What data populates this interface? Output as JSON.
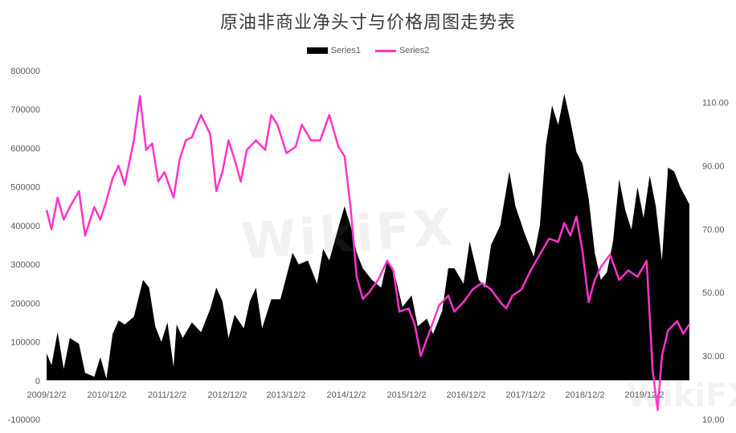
{
  "chart_data": {
    "type": "area+line",
    "title": "原油非商业净头寸与价格周图走势表",
    "legend_position": "top-center",
    "grid": false,
    "x_labels": [
      "2009/12/2",
      "2010/12/2",
      "2011/12/2",
      "2012/12/2",
      "2013/12/2",
      "2014/12/2",
      "2015/12/2",
      "2016/12/2",
      "2017/12/2",
      "2018/12/2",
      "2019/12/2"
    ],
    "y_left": {
      "min": -100000,
      "max": 800000,
      "ticks": [
        "-100000",
        "0",
        "100000",
        "200000",
        "300000",
        "400000",
        "500000",
        "600000",
        "700000",
        "800000"
      ]
    },
    "y_right": {
      "min": 10,
      "max": 120,
      "ticks": [
        "10.00",
        "30.00",
        "50.00",
        "70.00",
        "90.00",
        "110.00"
      ]
    },
    "series": [
      {
        "name": "Series1",
        "type": "area",
        "axis": "left",
        "color": "#000000",
        "points": [
          [
            2009.92,
            70000
          ],
          [
            2010.0,
            40000
          ],
          [
            2010.1,
            125000
          ],
          [
            2010.2,
            30000
          ],
          [
            2010.3,
            110000
          ],
          [
            2010.45,
            95000
          ],
          [
            2010.55,
            20000
          ],
          [
            2010.7,
            10000
          ],
          [
            2010.8,
            60000
          ],
          [
            2010.9,
            5000
          ],
          [
            2011.0,
            120000
          ],
          [
            2011.1,
            155000
          ],
          [
            2011.2,
            145000
          ],
          [
            2011.35,
            165000
          ],
          [
            2011.5,
            260000
          ],
          [
            2011.6,
            240000
          ],
          [
            2011.7,
            140000
          ],
          [
            2011.8,
            100000
          ],
          [
            2011.9,
            150000
          ],
          [
            2012.0,
            35000
          ],
          [
            2012.05,
            145000
          ],
          [
            2012.15,
            110000
          ],
          [
            2012.3,
            150000
          ],
          [
            2012.45,
            125000
          ],
          [
            2012.6,
            185000
          ],
          [
            2012.7,
            240000
          ],
          [
            2012.8,
            205000
          ],
          [
            2012.9,
            110000
          ],
          [
            2013.0,
            170000
          ],
          [
            2013.15,
            135000
          ],
          [
            2013.25,
            205000
          ],
          [
            2013.35,
            240000
          ],
          [
            2013.45,
            135000
          ],
          [
            2013.6,
            210000
          ],
          [
            2013.75,
            210000
          ],
          [
            2013.95,
            330000
          ],
          [
            2014.05,
            300000
          ],
          [
            2014.2,
            310000
          ],
          [
            2014.35,
            250000
          ],
          [
            2014.45,
            340000
          ],
          [
            2014.55,
            310000
          ],
          [
            2014.7,
            395000
          ],
          [
            2014.8,
            450000
          ],
          [
            2014.9,
            400000
          ],
          [
            2015.0,
            330000
          ],
          [
            2015.1,
            290000
          ],
          [
            2015.25,
            260000
          ],
          [
            2015.4,
            240000
          ],
          [
            2015.5,
            310000
          ],
          [
            2015.6,
            290000
          ],
          [
            2015.75,
            190000
          ],
          [
            2015.9,
            220000
          ],
          [
            2016.0,
            140000
          ],
          [
            2016.15,
            160000
          ],
          [
            2016.25,
            120000
          ],
          [
            2016.4,
            180000
          ],
          [
            2016.5,
            290000
          ],
          [
            2016.6,
            290000
          ],
          [
            2016.75,
            250000
          ],
          [
            2016.85,
            360000
          ],
          [
            2017.0,
            260000
          ],
          [
            2017.1,
            240000
          ],
          [
            2017.2,
            350000
          ],
          [
            2017.35,
            400000
          ],
          [
            2017.5,
            540000
          ],
          [
            2017.6,
            450000
          ],
          [
            2017.75,
            380000
          ],
          [
            2017.9,
            320000
          ],
          [
            2018.0,
            400000
          ],
          [
            2018.1,
            610000
          ],
          [
            2018.2,
            710000
          ],
          [
            2018.3,
            660000
          ],
          [
            2018.4,
            740000
          ],
          [
            2018.5,
            670000
          ],
          [
            2018.6,
            590000
          ],
          [
            2018.7,
            560000
          ],
          [
            2018.8,
            470000
          ],
          [
            2018.9,
            330000
          ],
          [
            2019.0,
            260000
          ],
          [
            2019.1,
            280000
          ],
          [
            2019.2,
            360000
          ],
          [
            2019.3,
            520000
          ],
          [
            2019.4,
            440000
          ],
          [
            2019.5,
            390000
          ],
          [
            2019.6,
            500000
          ],
          [
            2019.7,
            420000
          ],
          [
            2019.8,
            530000
          ],
          [
            2019.9,
            450000
          ],
          [
            2020.0,
            310000
          ],
          [
            2020.1,
            550000
          ],
          [
            2020.2,
            540000
          ],
          [
            2020.3,
            500000
          ],
          [
            2020.45,
            455000
          ]
        ]
      },
      {
        "name": "Series2",
        "type": "line",
        "axis": "right",
        "color": "#ff33cc",
        "points": [
          [
            2009.92,
            76
          ],
          [
            2010.0,
            70
          ],
          [
            2010.1,
            80
          ],
          [
            2010.2,
            73
          ],
          [
            2010.3,
            77
          ],
          [
            2010.45,
            82
          ],
          [
            2010.55,
            68
          ],
          [
            2010.7,
            77
          ],
          [
            2010.8,
            73
          ],
          [
            2010.9,
            79
          ],
          [
            2011.0,
            86
          ],
          [
            2011.1,
            90
          ],
          [
            2011.2,
            84
          ],
          [
            2011.35,
            98
          ],
          [
            2011.45,
            112
          ],
          [
            2011.55,
            95
          ],
          [
            2011.65,
            97
          ],
          [
            2011.75,
            85
          ],
          [
            2011.85,
            88
          ],
          [
            2012.0,
            80
          ],
          [
            2012.1,
            92
          ],
          [
            2012.2,
            98
          ],
          [
            2012.3,
            99
          ],
          [
            2012.45,
            106
          ],
          [
            2012.6,
            100
          ],
          [
            2012.7,
            82
          ],
          [
            2012.8,
            88
          ],
          [
            2012.9,
            98
          ],
          [
            2013.0,
            92
          ],
          [
            2013.1,
            85
          ],
          [
            2013.2,
            95
          ],
          [
            2013.35,
            98
          ],
          [
            2013.5,
            95
          ],
          [
            2013.6,
            106
          ],
          [
            2013.7,
            103
          ],
          [
            2013.85,
            94
          ],
          [
            2014.0,
            96
          ],
          [
            2014.1,
            103
          ],
          [
            2014.25,
            98
          ],
          [
            2014.4,
            98
          ],
          [
            2014.55,
            106
          ],
          [
            2014.7,
            96
          ],
          [
            2014.8,
            93
          ],
          [
            2014.9,
            77
          ],
          [
            2015.0,
            55
          ],
          [
            2015.1,
            48
          ],
          [
            2015.2,
            50
          ],
          [
            2015.35,
            54
          ],
          [
            2015.5,
            60
          ],
          [
            2015.6,
            57
          ],
          [
            2015.7,
            44
          ],
          [
            2015.85,
            45
          ],
          [
            2015.95,
            40
          ],
          [
            2016.05,
            30
          ],
          [
            2016.2,
            38
          ],
          [
            2016.35,
            46
          ],
          [
            2016.5,
            49
          ],
          [
            2016.6,
            44
          ],
          [
            2016.75,
            47
          ],
          [
            2016.9,
            51
          ],
          [
            2017.05,
            53
          ],
          [
            2017.2,
            51
          ],
          [
            2017.35,
            47
          ],
          [
            2017.45,
            45
          ],
          [
            2017.55,
            49
          ],
          [
            2017.7,
            51
          ],
          [
            2017.85,
            57
          ],
          [
            2018.0,
            62
          ],
          [
            2018.15,
            67
          ],
          [
            2018.3,
            66
          ],
          [
            2018.4,
            72
          ],
          [
            2018.5,
            68
          ],
          [
            2018.6,
            74
          ],
          [
            2018.7,
            63
          ],
          [
            2018.8,
            47
          ],
          [
            2018.9,
            54
          ],
          [
            2019.0,
            58
          ],
          [
            2019.15,
            62
          ],
          [
            2019.3,
            54
          ],
          [
            2019.45,
            57
          ],
          [
            2019.6,
            55
          ],
          [
            2019.75,
            60
          ],
          [
            2019.85,
            25
          ],
          [
            2019.93,
            13
          ],
          [
            2020.0,
            30
          ],
          [
            2020.1,
            38
          ],
          [
            2020.25,
            41
          ],
          [
            2020.35,
            37
          ],
          [
            2020.45,
            40
          ]
        ]
      }
    ]
  },
  "watermark": "WikiFX"
}
